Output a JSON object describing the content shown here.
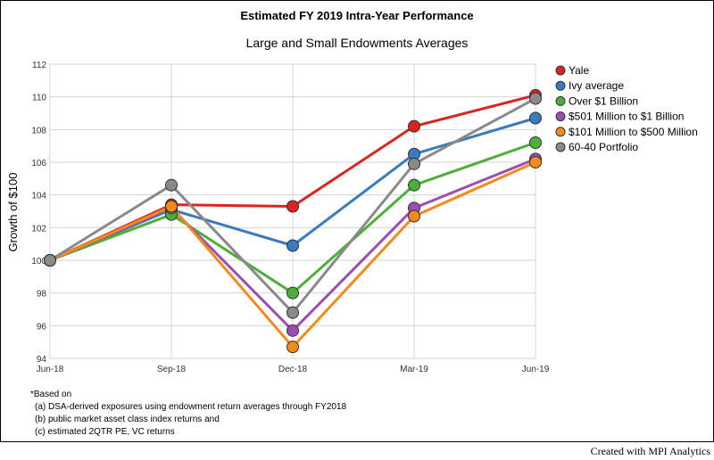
{
  "chart_data": {
    "type": "line",
    "title": "Estimated FY 2019 Intra-Year Performance",
    "subtitle": "Large and Small Endowments Averages",
    "xlabel": "",
    "ylabel": "Growth of $100",
    "ylim": [
      94,
      112
    ],
    "yticks": [
      94,
      96,
      98,
      100,
      102,
      104,
      106,
      108,
      110,
      112
    ],
    "grid": true,
    "legend_position": "right",
    "categories": [
      "Jun-18",
      "Sep-18",
      "Dec-18",
      "Mar-19",
      "Jun-19"
    ],
    "series": [
      {
        "name": "Yale",
        "color": "#dd2222",
        "values": [
          100,
          103.4,
          103.3,
          108.2,
          110.1
        ]
      },
      {
        "name": "Ivy average",
        "color": "#3a7bbf",
        "values": [
          100,
          103.1,
          100.9,
          106.5,
          108.7
        ]
      },
      {
        "name": "Over $1 Billion",
        "color": "#4caf3a",
        "values": [
          100,
          102.8,
          98.0,
          104.6,
          107.2
        ]
      },
      {
        "name": "$501 Million to $1 Billion",
        "color": "#9b4fb0",
        "values": [
          100,
          103.2,
          95.7,
          103.2,
          106.2
        ]
      },
      {
        "name": "$101 Million to $500 Million",
        "color": "#f28a1c",
        "values": [
          100,
          103.3,
          94.7,
          102.7,
          106.0
        ]
      },
      {
        "name": "60-40 Portfolio",
        "color": "#8a8a8a",
        "values": [
          100,
          104.6,
          96.8,
          105.9,
          109.9
        ]
      }
    ]
  },
  "footnote": {
    "lines": [
      "*Based on",
      "(a) DSA-derived exposures using endowment return averages through FY2018",
      "(b) public market asset class index returns and",
      "(c) estimated 2QTR PE, VC returns"
    ]
  },
  "credit": "Created with MPI Analytics"
}
